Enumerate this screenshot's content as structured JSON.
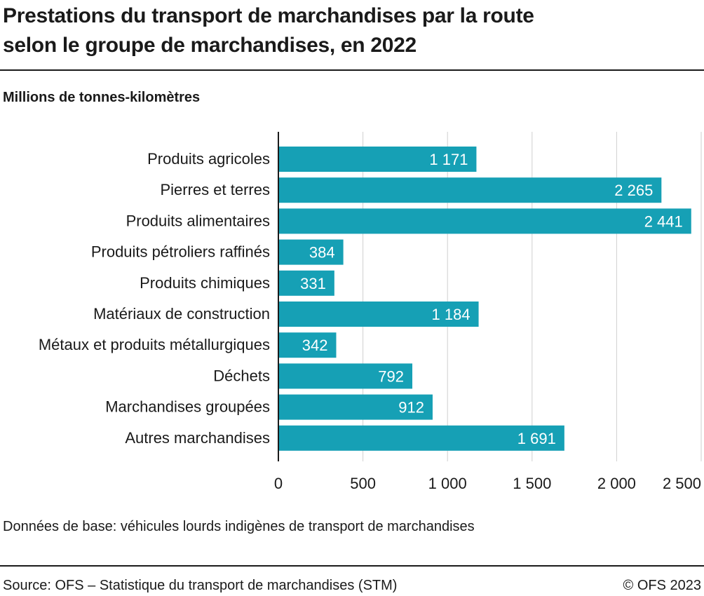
{
  "header": {
    "title_line1": "Prestations du transport de marchandises par la route",
    "title_line2": "selon le groupe de marchandises, en 2022"
  },
  "chart_data": {
    "type": "bar",
    "orientation": "horizontal",
    "title": "Prestations du transport de marchandises par la route selon le groupe de marchandises, en 2022",
    "unit_label": "Millions de tonnes-kilomètres",
    "categories": [
      "Produits agricoles",
      "Pierres et terres",
      "Produits alimentaires",
      "Produits pétroliers raffinés",
      "Produits chimiques",
      "Matériaux de construction",
      "Métaux et produits métallurgiques",
      "Déchets",
      "Marchandises groupées",
      "Autres marchandises"
    ],
    "values": [
      1171,
      2265,
      2441,
      384,
      331,
      1184,
      342,
      792,
      912,
      1691
    ],
    "value_labels": [
      "1 171",
      "2 265",
      "2 441",
      "384",
      "331",
      "1 184",
      "342",
      "792",
      "912",
      "1 691"
    ],
    "xlim": [
      0,
      2500
    ],
    "ticks": [
      0,
      500,
      1000,
      1500,
      2000,
      2500
    ],
    "tick_labels": [
      "0",
      "500",
      "1 000",
      "1 500",
      "2 000",
      "2 500"
    ],
    "grid": "vertical",
    "bar_color": "#16a0b5"
  },
  "footer": {
    "note": "Données de base: véhicules lourds indigènes de transport de marchandises",
    "source": "Source: OFS – Statistique du transport de marchandises (STM)",
    "copyright": "© OFS 2023"
  }
}
